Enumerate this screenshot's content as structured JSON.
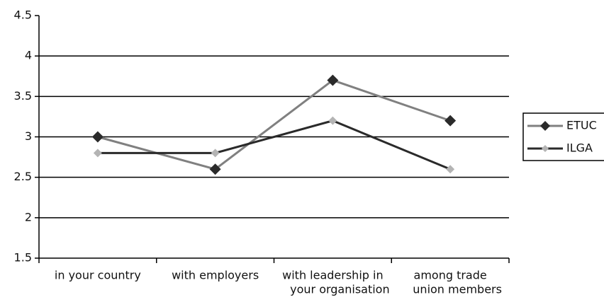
{
  "chart_data": {
    "type": "line",
    "categories": [
      [
        "in your country"
      ],
      [
        "with employers"
      ],
      [
        "with leadership in",
        "your organisation"
      ],
      [
        "among trade",
        "union members"
      ]
    ],
    "series": [
      {
        "name": "ETUC",
        "color": "#808080",
        "marker_color": "#2a2a2a",
        "values": [
          3,
          2.6,
          3.7,
          3.2
        ]
      },
      {
        "name": "ILGA",
        "color": "#2a2a2a",
        "marker_color": "#b4b4b4",
        "values": [
          2.8,
          2.8,
          3.2,
          2.6
        ]
      }
    ],
    "ylim": [
      1.5,
      4.5
    ],
    "yticks": [
      1.5,
      2,
      2.5,
      3,
      3.5,
      4,
      4.5
    ],
    "grid": true,
    "legend": "right"
  }
}
